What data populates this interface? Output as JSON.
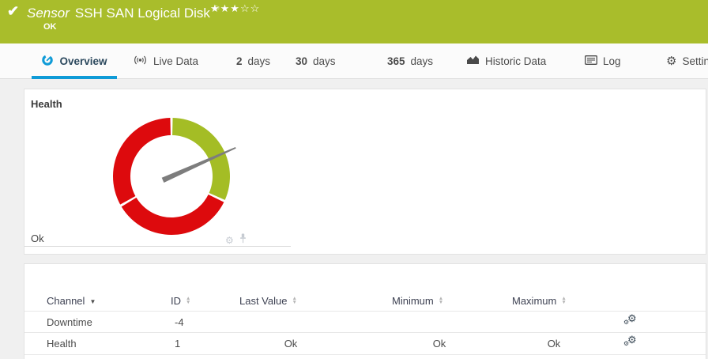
{
  "header": {
    "type_label": "Sensor",
    "title": "SSH SAN Logical Disk",
    "status": "OK",
    "stars_filled": "★★★",
    "stars_empty": "☆☆",
    "bg_color": "#a9bd2b"
  },
  "tabs": {
    "overview": "Overview",
    "live": "Live Data",
    "d2_num": "2",
    "d2_label": "days",
    "d30_num": "30",
    "d30_label": "days",
    "d365_num": "365",
    "d365_label": "days",
    "historic": "Historic Data",
    "log": "Log",
    "settings": "Settings"
  },
  "gauge_panel": {
    "title": "Health",
    "status_text": "Ok"
  },
  "chart_data": {
    "type": "gauge",
    "title": "Health",
    "current_value": "Ok",
    "needle_angle_deg_clockwise_from_top": 66,
    "needle_length": 89,
    "needle_tail": 12,
    "needle_color": "#7d7d7d",
    "outer_radius": 74,
    "inner_radius": 52,
    "segments": [
      {
        "from_deg": 1.2,
        "to_deg": 113.8,
        "color": "#a4bd25",
        "label": "ok-zone"
      },
      {
        "from_deg": 116.2,
        "to_deg": 238.8,
        "color": "#dd0a0d",
        "label": "error-zone"
      },
      {
        "from_deg": 241.2,
        "to_deg": 358.8,
        "color": "#dd0a0d",
        "label": "error-zone"
      }
    ]
  },
  "table": {
    "headers": {
      "channel": "Channel",
      "id": "ID",
      "last": "Last Value",
      "min": "Minimum",
      "max": "Maximum"
    },
    "rows": [
      {
        "channel": "Downtime",
        "id": "-4",
        "last": "",
        "min": "",
        "max": ""
      },
      {
        "channel": "Health",
        "id": "1",
        "last": "Ok",
        "min": "Ok",
        "max": "Ok"
      }
    ]
  },
  "icons": {
    "check": "✔",
    "flag": "⚐",
    "gear": "⚙",
    "sort_desc": "▼",
    "sort_up": "▲",
    "sort_down": "▼"
  }
}
